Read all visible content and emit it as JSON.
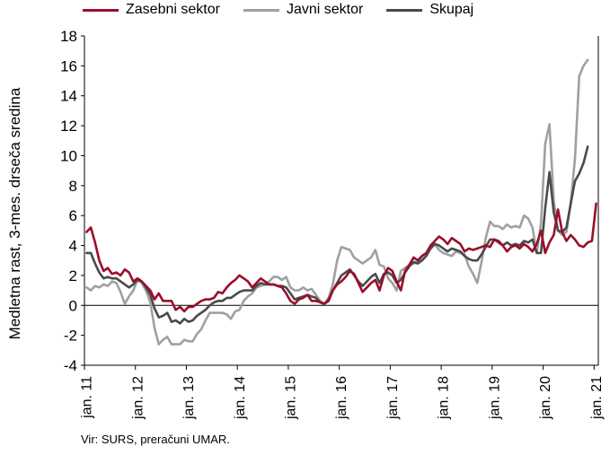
{
  "chart_data": {
    "type": "line",
    "ylabel": "Medletna rast, 3-mes. drseča sredina",
    "ylim": [
      -4,
      18
    ],
    "yticks": [
      -4,
      -2,
      0,
      2,
      4,
      6,
      8,
      10,
      12,
      14,
      16,
      18
    ],
    "xticks": [
      "jan. 11",
      "jan. 12",
      "jan. 13",
      "jan. 14",
      "jan. 15",
      "jan. 16",
      "jan. 17",
      "jan. 18",
      "jan. 19",
      "jan. 20",
      "jan. 21"
    ],
    "x_start": "jan. 11",
    "legend_position": "top",
    "grid": false,
    "series": [
      {
        "name": "Zasebni sektor",
        "color": "#9b0e2a",
        "values": [
          4.9,
          5.2,
          4.2,
          3.0,
          2.3,
          2.5,
          2.1,
          2.2,
          2.0,
          2.4,
          2.2,
          1.6,
          1.8,
          1.6,
          1.3,
          1.0,
          0.4,
          0.8,
          0.3,
          0.3,
          0.3,
          -0.3,
          -0.1,
          -0.4,
          -0.1,
          -0.1,
          0.1,
          0.3,
          0.4,
          0.4,
          0.5,
          0.9,
          0.8,
          1.2,
          1.5,
          1.7,
          2.0,
          1.8,
          1.6,
          1.2,
          1.5,
          1.8,
          1.6,
          1.4,
          1.4,
          1.3,
          1.2,
          0.8,
          0.3,
          0.1,
          0.4,
          0.5,
          0.7,
          0.3,
          0.3,
          0.2,
          0.1,
          0.3,
          1.0,
          1.4,
          1.6,
          1.9,
          2.3,
          2.1,
          1.5,
          0.9,
          1.2,
          1.5,
          1.7,
          1.0,
          2.0,
          2.5,
          2.3,
          1.6,
          1.0,
          2.3,
          2.7,
          3.2,
          3.0,
          3.3,
          3.5,
          4.0,
          4.3,
          4.6,
          4.4,
          4.1,
          4.5,
          4.3,
          4.1,
          3.6,
          3.8,
          3.7,
          3.8,
          3.9,
          4.0,
          3.9,
          4.4,
          4.3,
          4.0,
          3.6,
          3.9,
          4.0,
          3.8,
          4.1,
          3.9,
          3.6,
          4.1,
          5.0,
          3.5,
          4.2,
          4.7,
          6.4,
          4.9,
          4.3,
          4.7,
          4.4,
          4.0,
          3.9,
          4.2,
          4.3,
          6.8
        ]
      },
      {
        "name": "Javni sektor",
        "color": "#a0a0a0",
        "values": [
          1.2,
          1.0,
          1.3,
          1.2,
          1.4,
          1.3,
          1.6,
          1.5,
          0.9,
          0.1,
          0.6,
          1.0,
          1.7,
          1.5,
          1.0,
          0.2,
          -1.5,
          -2.6,
          -2.3,
          -2.1,
          -2.6,
          -2.6,
          -2.6,
          -2.3,
          -2.4,
          -2.4,
          -1.9,
          -1.6,
          -1.0,
          -0.5,
          -0.5,
          -0.5,
          -0.5,
          -0.6,
          -0.9,
          -0.4,
          -0.3,
          0.3,
          0.6,
          0.8,
          1.2,
          1.3,
          1.4,
          1.6,
          1.9,
          1.9,
          1.7,
          1.9,
          1.2,
          1.0,
          1.0,
          1.2,
          1.0,
          1.1,
          0.7,
          0.3,
          0.1,
          0.5,
          1.4,
          3.0,
          3.9,
          3.8,
          3.7,
          3.2,
          3.0,
          2.8,
          3.0,
          3.2,
          3.7,
          2.7,
          2.6,
          1.8,
          1.5,
          1.0,
          2.3,
          2.5,
          2.7,
          2.8,
          2.9,
          3.3,
          3.5,
          3.8,
          4.1,
          3.7,
          3.5,
          3.4,
          3.3,
          3.6,
          3.5,
          3.4,
          2.6,
          2.1,
          1.5,
          2.9,
          4.5,
          5.6,
          5.3,
          5.3,
          5.1,
          5.4,
          5.2,
          5.3,
          5.2,
          6.0,
          5.8,
          5.2,
          3.5,
          5.5,
          10.8,
          12.1,
          7.0,
          5.0,
          4.7,
          4.9,
          6.8,
          9.8,
          15.3,
          16.0,
          16.4
        ]
      },
      {
        "name": "Skupaj",
        "color": "#4a4a4a",
        "values": [
          3.5,
          3.5,
          2.8,
          2.2,
          1.8,
          1.9,
          1.8,
          1.8,
          1.6,
          1.4,
          1.2,
          1.4,
          1.7,
          1.6,
          1.2,
          0.7,
          -0.2,
          -0.8,
          -0.7,
          -0.5,
          -1.1,
          -1.0,
          -1.2,
          -0.9,
          -1.1,
          -1.0,
          -0.7,
          -0.5,
          -0.3,
          0.0,
          0.2,
          0.3,
          0.3,
          0.5,
          0.5,
          0.7,
          0.9,
          1.0,
          1.0,
          1.0,
          1.3,
          1.5,
          1.4,
          1.4,
          1.4,
          1.3,
          1.3,
          1.2,
          0.8,
          0.4,
          0.5,
          0.6,
          0.7,
          0.6,
          0.5,
          0.2,
          0.1,
          0.4,
          1.0,
          1.5,
          2.0,
          2.2,
          2.4,
          2.0,
          1.6,
          1.3,
          1.6,
          1.9,
          2.1,
          1.5,
          2.1,
          2.2,
          2.0,
          1.5,
          1.7,
          2.2,
          2.6,
          2.9,
          2.8,
          3.0,
          3.3,
          3.8,
          4.1,
          4.0,
          3.8,
          3.6,
          3.8,
          3.7,
          3.6,
          3.3,
          3.1,
          3.0,
          3.0,
          3.4,
          3.9,
          4.4,
          4.4,
          4.2,
          4.0,
          4.2,
          4.0,
          4.1,
          4.0,
          4.3,
          4.2,
          4.4,
          3.5,
          3.5,
          6.5,
          8.9,
          6.2,
          5.0,
          4.9,
          5.2,
          6.8,
          8.3,
          8.8,
          9.5,
          10.6
        ]
      }
    ]
  },
  "source": "Vir: SURS, preračuni UMAR."
}
